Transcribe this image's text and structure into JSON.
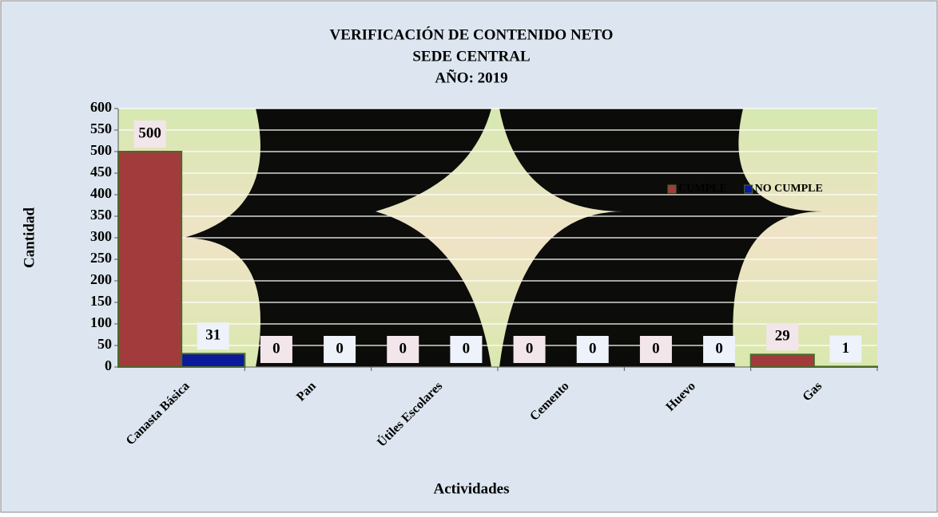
{
  "chart_data": {
    "type": "bar",
    "title": [
      "VERIFICACIÓN DE CONTENIDO NETO",
      "SEDE CENTRAL",
      "AÑO: 2019"
    ],
    "x_label": "Actividades",
    "y_label": "Cantidad",
    "categories": [
      "Canasta Básica",
      "Pan",
      "Útiles Escolares",
      "Cemento",
      "Huevo",
      "Gas"
    ],
    "series": [
      {
        "name": "CUMPLE",
        "color": "#a23b3b",
        "values": [
          500,
          0,
          0,
          0,
          0,
          29
        ]
      },
      {
        "name": "NO CUMPLE",
        "color": "#0a1a9a",
        "values": [
          31,
          0,
          0,
          0,
          0,
          1
        ]
      }
    ],
    "ylim": [
      0,
      600
    ],
    "yticks": [
      0,
      50,
      100,
      150,
      200,
      250,
      300,
      350,
      400,
      450,
      500,
      550,
      600
    ],
    "grid": true,
    "legend": "inside-right",
    "data_labels": true
  }
}
